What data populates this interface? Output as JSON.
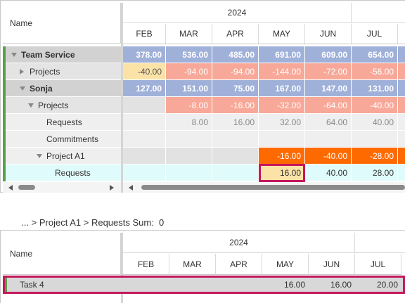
{
  "top": {
    "name_header": "Name",
    "year": "2024",
    "months": [
      "FEB",
      "MAR",
      "APR",
      "MAY",
      "JUN",
      "JUL"
    ],
    "rows": [
      {
        "name": "Team Service",
        "bold": true,
        "expander": "down",
        "indent": 0,
        "values": [
          "378.00",
          "536.00",
          "485.00",
          "691.00",
          "609.00",
          "654.00"
        ]
      },
      {
        "name": "Projects",
        "bold": false,
        "expander": "right",
        "indent": 1,
        "values": [
          "-40.00",
          "-94.00",
          "-94.00",
          "-144.00",
          "-72.00",
          "-56.00"
        ]
      },
      {
        "name": "Sonja",
        "bold": true,
        "expander": "down",
        "indent": 1,
        "values": [
          "127.00",
          "151.00",
          "75.00",
          "167.00",
          "147.00",
          "131.00"
        ]
      },
      {
        "name": "Projects",
        "bold": false,
        "expander": "down",
        "indent": 2,
        "values": [
          "",
          "-8.00",
          "-16.00",
          "-32.00",
          "-64.00",
          "-40.00"
        ]
      },
      {
        "name": "Requests",
        "bold": false,
        "expander": "",
        "indent": 3,
        "values": [
          "",
          "8.00",
          "16.00",
          "32.00",
          "64.00",
          "40.00"
        ]
      },
      {
        "name": "Commitments",
        "bold": false,
        "expander": "",
        "indent": 3,
        "values": [
          "",
          "",
          "",
          "",
          "",
          ""
        ]
      },
      {
        "name": "Project A1",
        "bold": false,
        "expander": "down",
        "indent": 3,
        "values": [
          "",
          "",
          "",
          "-16.00",
          "-40.00",
          "-28.00"
        ]
      },
      {
        "name": "Requests",
        "bold": false,
        "expander": "",
        "indent": 4,
        "values": [
          "",
          "",
          "",
          "16.00",
          "40.00",
          "28.00"
        ]
      }
    ]
  },
  "breadcrumb": "... > Project A1 > Requests Sum:  0",
  "bottom": {
    "name_header": "Name",
    "year": "2024",
    "months": [
      "FEB",
      "MAR",
      "APR",
      "MAY",
      "JUN",
      "JUL"
    ],
    "rows": [
      {
        "name": "Task 4",
        "values": [
          "",
          "",
          "",
          "16.00",
          "16.00",
          "20.00"
        ]
      }
    ]
  },
  "colors": {
    "blue": "#9fb0d9",
    "salmon": "#f8a898",
    "pale_orange": "#fbe3a8",
    "orange": "#ff6a00",
    "cyan": "#e0fbfb",
    "gray": "#e2e2e2",
    "light_gray": "#efefef",
    "green": "#5aa049",
    "crimson": "#c2185b"
  }
}
